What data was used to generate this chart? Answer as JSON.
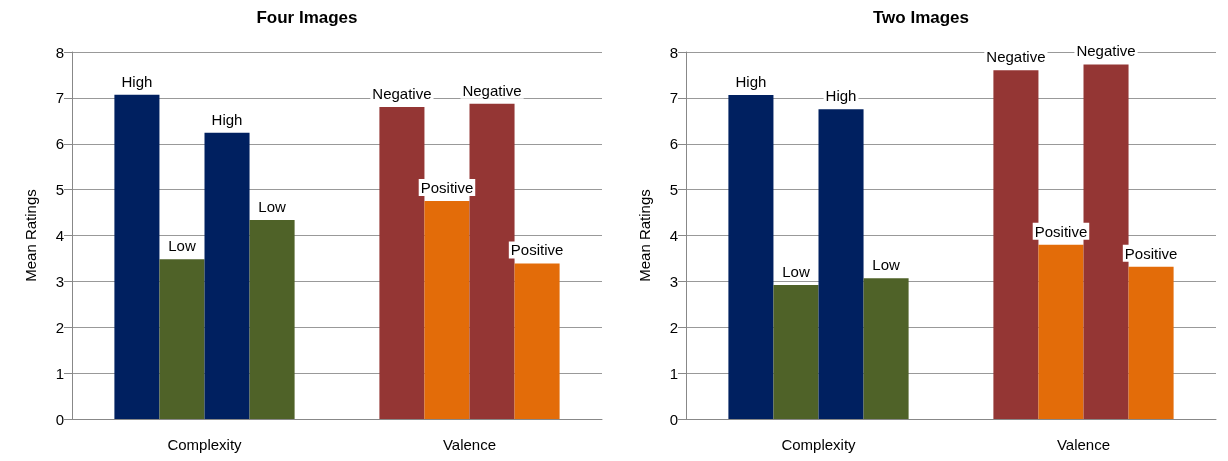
{
  "chart_data": [
    {
      "type": "bar",
      "title": "Four Images",
      "ylabel": "Mean Ratings",
      "categories": [
        "Complexity",
        "Valence"
      ],
      "ylim": [
        0,
        8
      ],
      "yticks": [
        0,
        1,
        2,
        3,
        4,
        5,
        6,
        7,
        8
      ],
      "grid": "y",
      "series": [
        {
          "values": [
            7.07,
            6.8
          ],
          "colors": [
            "#002060",
            "#943634"
          ],
          "value_labels": [
            "High",
            "Negative"
          ]
        },
        {
          "values": [
            3.48,
            4.75
          ],
          "colors": [
            "#4f6228",
            "#e36c09"
          ],
          "value_labels": [
            "Low",
            "Positive"
          ]
        },
        {
          "values": [
            6.24,
            6.87
          ],
          "colors": [
            "#002060",
            "#943634"
          ],
          "value_labels": [
            "High",
            "Negative"
          ]
        },
        {
          "values": [
            4.34,
            3.39
          ],
          "colors": [
            "#4f6228",
            "#e36c09"
          ],
          "value_labels": [
            "Low",
            "Positive"
          ]
        }
      ]
    },
    {
      "type": "bar",
      "title": "Two Images",
      "ylabel": "Mean Ratings",
      "categories": [
        "Complexity",
        "Valence"
      ],
      "ylim": [
        0,
        8
      ],
      "yticks": [
        0,
        1,
        2,
        3,
        4,
        5,
        6,
        7,
        8
      ],
      "grid": "y",
      "series": [
        {
          "values": [
            7.06,
            7.6
          ],
          "colors": [
            "#002060",
            "#943634"
          ],
          "value_labels": [
            "High",
            "Negative"
          ]
        },
        {
          "values": [
            2.92,
            3.8
          ],
          "colors": [
            "#4f6228",
            "#e36c09"
          ],
          "value_labels": [
            "Low",
            "Positive"
          ]
        },
        {
          "values": [
            6.75,
            7.73
          ],
          "colors": [
            "#002060",
            "#943634"
          ],
          "value_labels": [
            "High",
            "Negative"
          ]
        },
        {
          "values": [
            3.07,
            3.32
          ],
          "colors": [
            "#4f6228",
            "#e36c09"
          ],
          "value_labels": [
            "Low",
            "Positive"
          ]
        }
      ]
    }
  ]
}
